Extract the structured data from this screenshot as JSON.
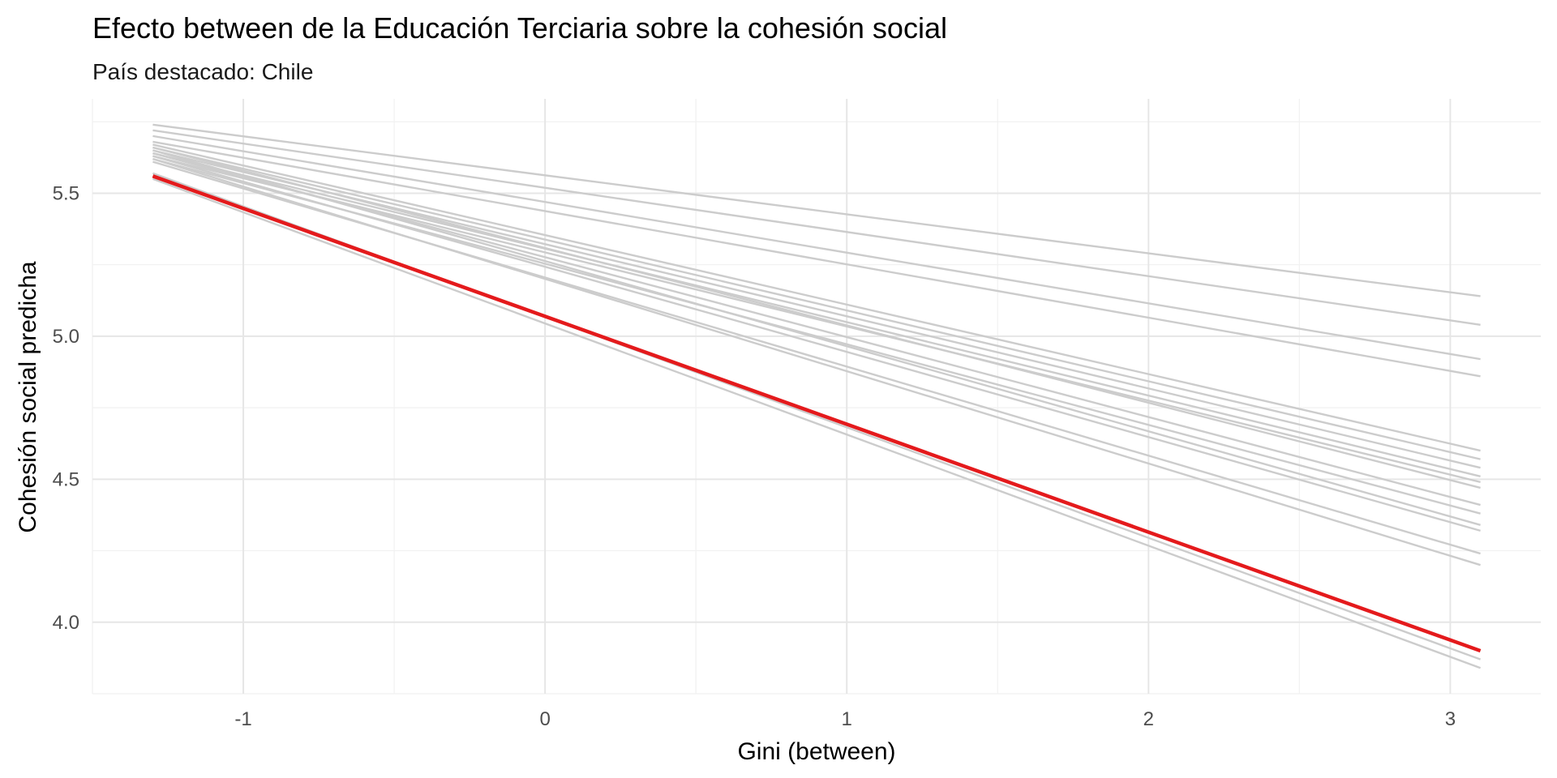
{
  "chart_data": {
    "type": "line",
    "title": "Efecto between de la Educación Terciaria sobre la cohesión social",
    "subtitle": "País destacado: Chile",
    "xlabel": "Gini (between)",
    "ylabel": "Cohesión social predicha",
    "xlim": [
      -1.5,
      3.3
    ],
    "ylim": [
      3.75,
      5.83
    ],
    "x_ticks": [
      -1,
      0,
      1,
      2,
      3
    ],
    "x_tick_labels": [
      "-1",
      "0",
      "1",
      "2",
      "3"
    ],
    "y_ticks": [
      4.0,
      4.5,
      5.0,
      5.5
    ],
    "y_tick_labels": [
      "4.0",
      "4.5",
      "5.0",
      "5.5"
    ],
    "grid": true,
    "background_color": "#ffffff",
    "other_series_color": "#cccccc",
    "highlight_color": "#e41a1c",
    "series": [
      {
        "x": [
          -1.3,
          3.1
        ],
        "y": [
          5.74,
          5.14
        ]
      },
      {
        "x": [
          -1.3,
          3.1
        ],
        "y": [
          5.72,
          5.04
        ]
      },
      {
        "x": [
          -1.3,
          3.1
        ],
        "y": [
          5.7,
          4.92
        ]
      },
      {
        "x": [
          -1.3,
          3.1
        ],
        "y": [
          5.68,
          4.86
        ]
      },
      {
        "x": [
          -1.3,
          3.1
        ],
        "y": [
          5.67,
          4.6
        ]
      },
      {
        "x": [
          -1.3,
          3.1
        ],
        "y": [
          5.66,
          4.57
        ]
      },
      {
        "x": [
          -1.3,
          3.1
        ],
        "y": [
          5.65,
          4.54
        ]
      },
      {
        "x": [
          -1.3,
          3.1
        ],
        "y": [
          5.64,
          4.51
        ]
      },
      {
        "x": [
          -1.3,
          3.1
        ],
        "y": [
          5.63,
          4.49
        ]
      },
      {
        "x": [
          -1.3,
          3.1
        ],
        "y": [
          5.66,
          4.47
        ]
      },
      {
        "x": [
          -1.3,
          3.1
        ],
        "y": [
          5.64,
          4.41
        ]
      },
      {
        "x": [
          -1.3,
          3.1
        ],
        "y": [
          5.62,
          4.38
        ]
      },
      {
        "x": [
          -1.3,
          3.1
        ],
        "y": [
          5.65,
          4.34
        ]
      },
      {
        "x": [
          -1.3,
          3.1
        ],
        "y": [
          5.63,
          4.32
        ]
      },
      {
        "x": [
          -1.3,
          3.1
        ],
        "y": [
          5.61,
          4.24
        ]
      },
      {
        "x": [
          -1.3,
          3.1
        ],
        "y": [
          5.62,
          4.2
        ]
      },
      {
        "x": [
          -1.3,
          3.1
        ],
        "y": [
          5.57,
          3.87
        ]
      },
      {
        "x": [
          -1.3,
          3.1
        ],
        "y": [
          5.55,
          3.84
        ]
      },
      {
        "name": "Chile",
        "highlight": true,
        "x": [
          -1.3,
          3.1
        ],
        "y": [
          5.56,
          3.9
        ]
      }
    ]
  }
}
